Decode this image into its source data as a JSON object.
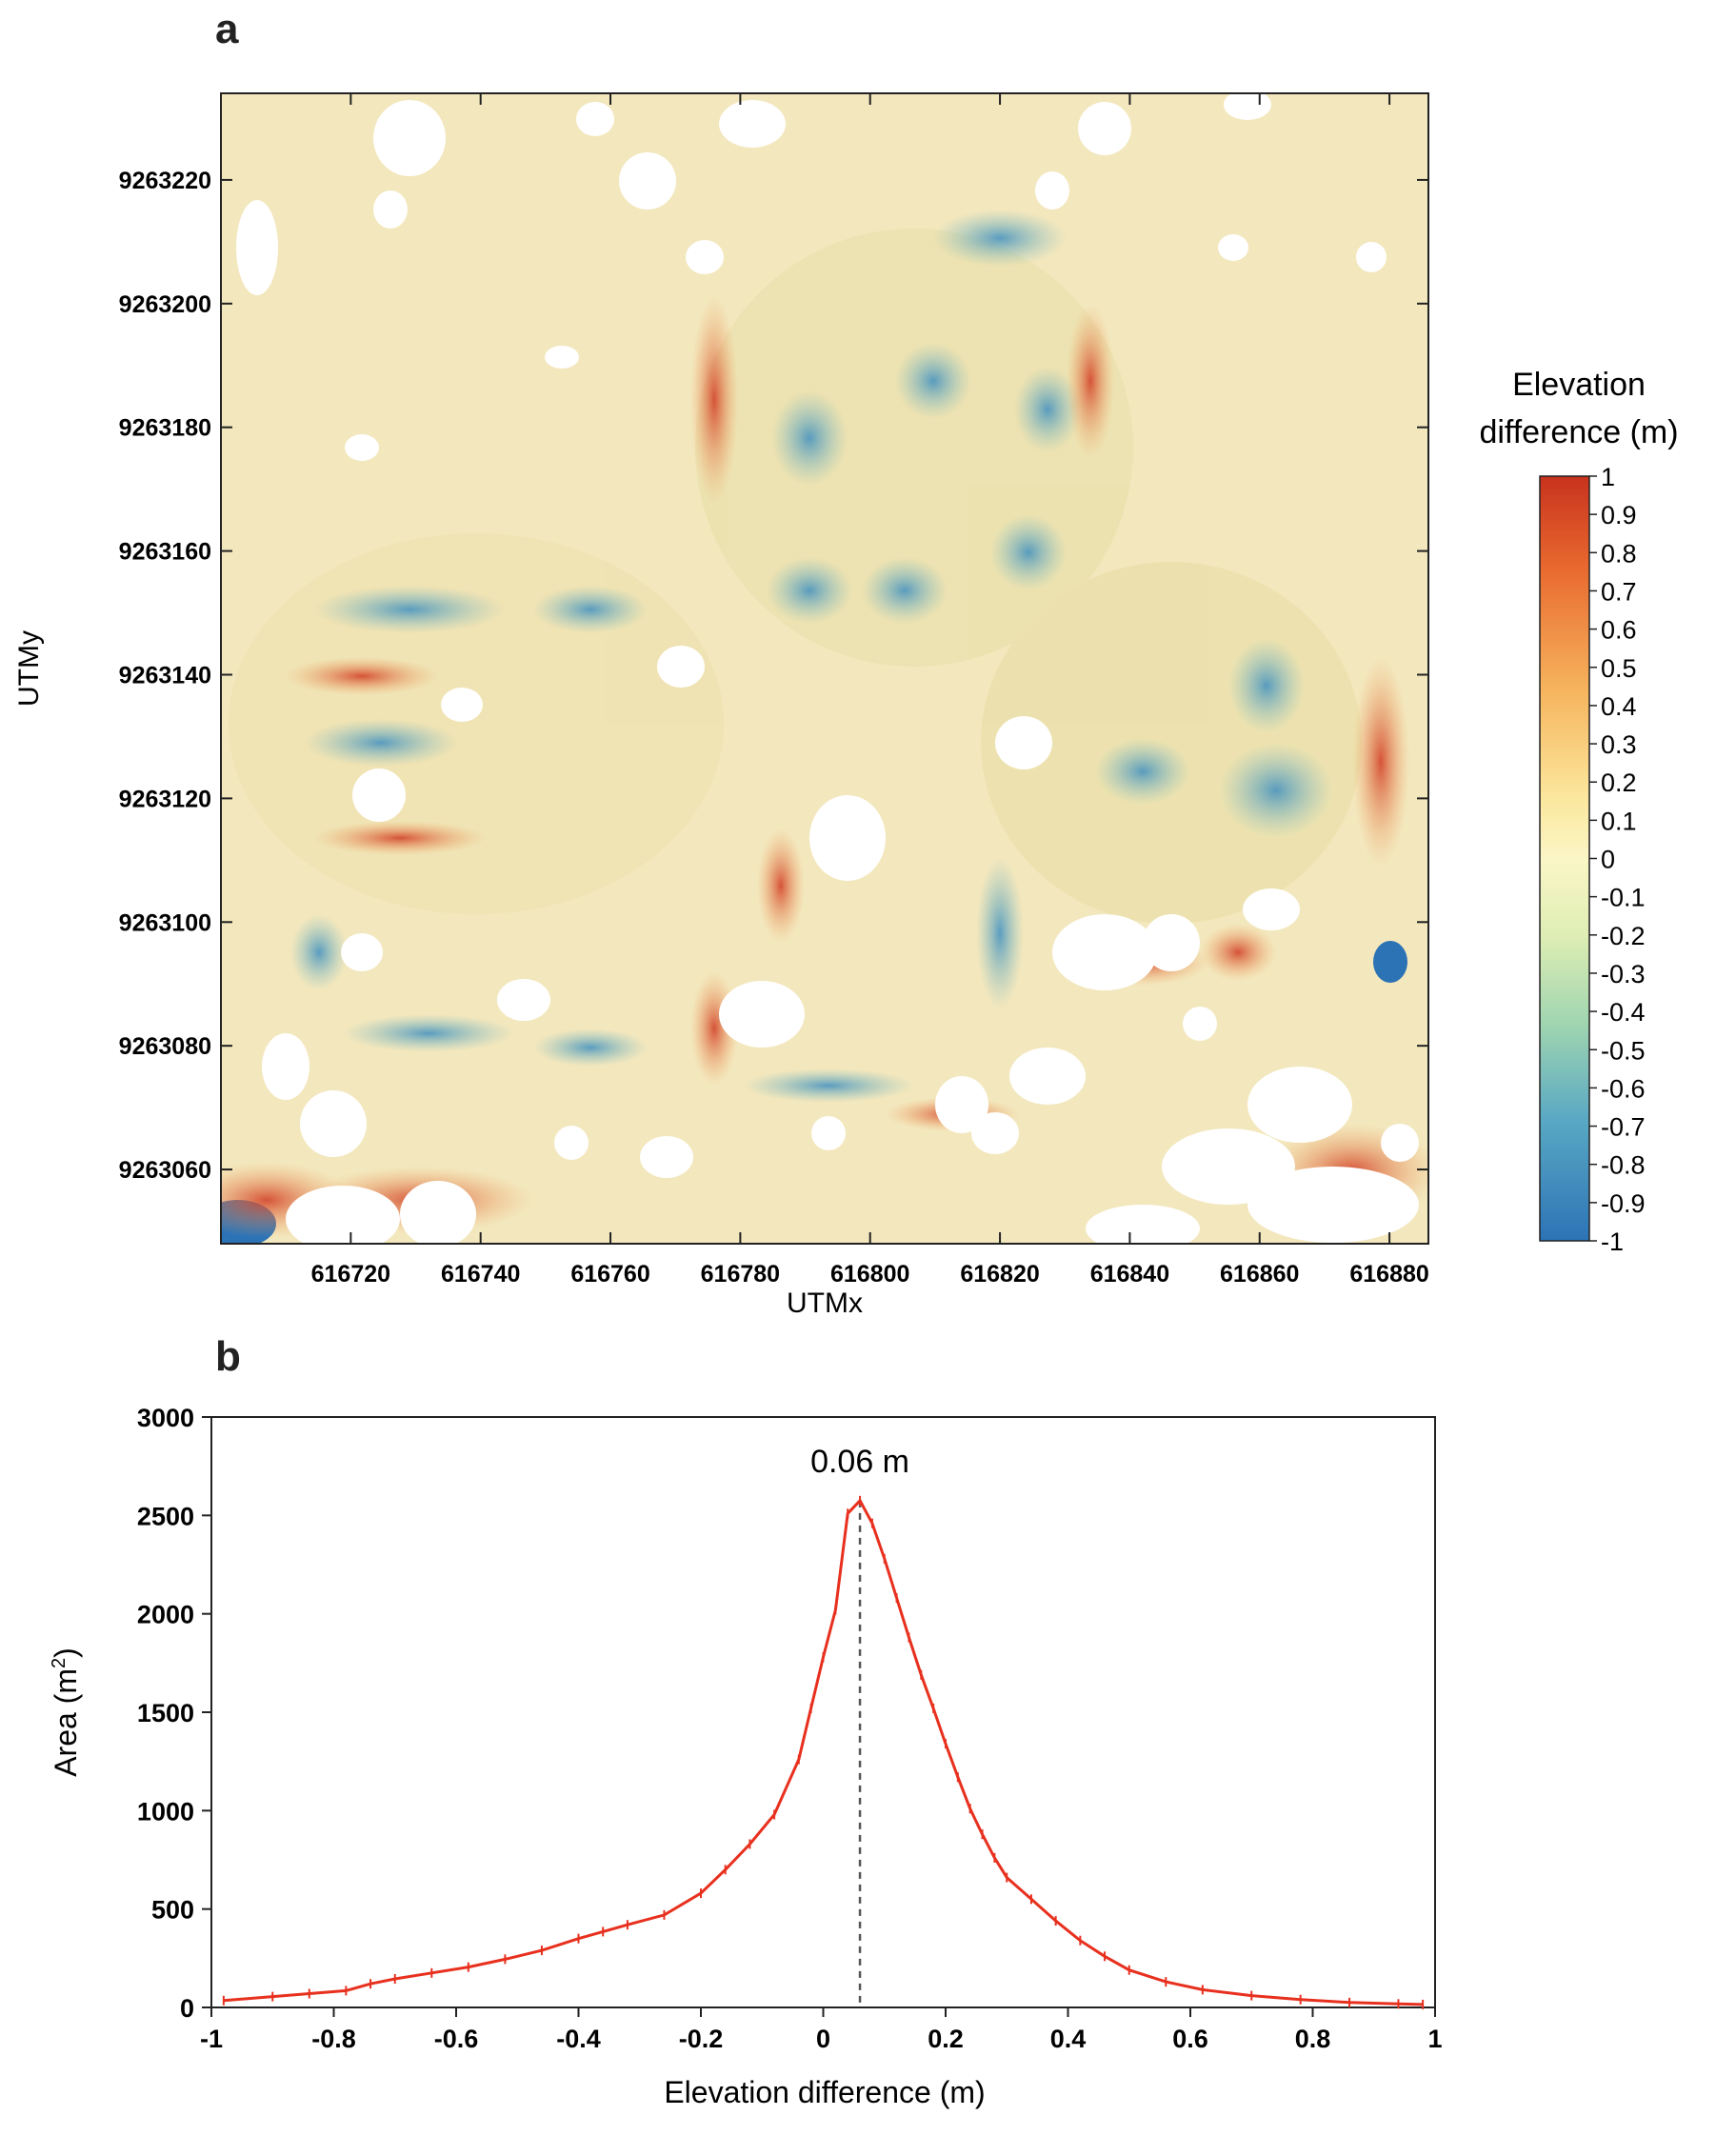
{
  "panels": {
    "a": {
      "letter": "a",
      "xlabel": "UTMx",
      "ylabel": "UTMy",
      "x_ticks": [
        "616720",
        "616740",
        "616760",
        "616780",
        "616800",
        "616820",
        "616840",
        "616860",
        "616880"
      ],
      "y_ticks": [
        "9263220",
        "9263200",
        "9263180",
        "9263160",
        "9263140",
        "9263120",
        "9263100",
        "9263080",
        "9263060"
      ],
      "colorbar": {
        "title_line1": "Elevation",
        "title_line2": "difference (m)",
        "ticks": [
          "1",
          "0.9",
          "0.8",
          "0.7",
          "0.6",
          "0.5",
          "0.4",
          "0.3",
          "0.2",
          "0.1",
          "0",
          "-0.1",
          "-0.2",
          "-0.3",
          "-0.4",
          "-0.5",
          "-0.6",
          "-0.7",
          "-0.8",
          "-0.9",
          "-1"
        ],
        "range": [
          -1,
          1
        ]
      }
    },
    "b": {
      "letter": "b"
    }
  },
  "colors": {
    "line": "#e8301e",
    "map_background": "#f3e7bd",
    "positive_high": "#c8321d",
    "neutral": "#fbf6c6",
    "negative_low": "#2c73b6"
  },
  "chart_data": [
    {
      "type": "heatmap",
      "xlabel": "UTMx",
      "ylabel": "UTMy",
      "xlim": [
        616700,
        616886
      ],
      "ylim": [
        9263048,
        9263234
      ],
      "x_ticks": [
        616720,
        616740,
        616760,
        616780,
        616800,
        616820,
        616840,
        616860,
        616880
      ],
      "y_ticks": [
        9263220,
        9263200,
        9263180,
        9263160,
        9263140,
        9263120,
        9263100,
        9263080,
        9263060
      ],
      "colorbar_label": "Elevation difference (m)",
      "colorbar_range": [
        -1,
        1
      ],
      "colorbar_ticks": [
        1,
        0.9,
        0.8,
        0.7,
        0.6,
        0.5,
        0.4,
        0.3,
        0.2,
        0.1,
        0,
        -0.1,
        -0.2,
        -0.3,
        -0.4,
        -0.5,
        -0.6,
        -0.7,
        -0.8,
        -0.9,
        -1
      ]
    },
    {
      "type": "line",
      "xlabel": "Elevation difference (m)",
      "ylabel_main": "Area (m",
      "ylabel_sup": "2",
      "ylabel_close": ")",
      "xlim": [
        -1,
        1
      ],
      "ylim": [
        0,
        3000
      ],
      "x_ticks": [
        -1,
        -0.8,
        -0.6,
        -0.4,
        -0.2,
        0,
        0.2,
        0.4,
        0.6,
        0.8,
        1
      ],
      "x_tick_labels": [
        "-1",
        "-0.8",
        "-0.6",
        "-0.4",
        "-0.2",
        "0",
        "0.2",
        "0.4",
        "0.6",
        "0.8",
        "1"
      ],
      "y_ticks": [
        0,
        500,
        1000,
        1500,
        2000,
        2500,
        3000
      ],
      "y_tick_labels": [
        "0",
        "500",
        "1000",
        "1500",
        "2000",
        "2500",
        "3000"
      ],
      "peak": {
        "x": 0.06,
        "y": 2575,
        "label": "0.06 m"
      },
      "series": [
        {
          "x": [
            -0.98,
            -0.9,
            -0.84,
            -0.78,
            -0.74,
            -0.7,
            -0.64,
            -0.58,
            -0.52,
            -0.46,
            -0.4,
            -0.36,
            -0.32,
            -0.26,
            -0.2,
            -0.16,
            -0.12,
            -0.08,
            -0.04,
            -0.02,
            0.0,
            0.02,
            0.04,
            0.06,
            0.08,
            0.1,
            0.12,
            0.14,
            0.16,
            0.18,
            0.2,
            0.22,
            0.24,
            0.26,
            0.28,
            0.3,
            0.34,
            0.38,
            0.42,
            0.46,
            0.5,
            0.56,
            0.62,
            0.7,
            0.78,
            0.86,
            0.94,
            0.98
          ],
          "values": [
            35,
            55,
            70,
            85,
            120,
            145,
            175,
            205,
            245,
            290,
            350,
            385,
            420,
            470,
            580,
            700,
            830,
            980,
            1260,
            1520,
            1780,
            2020,
            2510,
            2575,
            2460,
            2280,
            2080,
            1880,
            1690,
            1520,
            1340,
            1170,
            1010,
            880,
            760,
            660,
            550,
            440,
            340,
            260,
            190,
            130,
            90,
            60,
            40,
            25,
            18,
            15
          ]
        }
      ]
    }
  ]
}
